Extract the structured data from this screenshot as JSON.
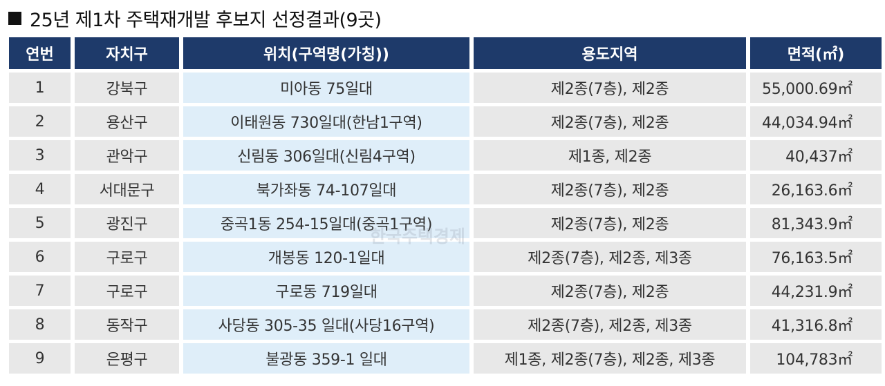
{
  "title": "25년 제1차 주택재개발 후보지 선정결과(9곳)",
  "watermark": "한국주택경제",
  "headers": {
    "no": "연번",
    "district": "자치구",
    "location": "위치(구역명(가칭))",
    "zoning": "용도지역",
    "area": "면적(㎡)"
  },
  "rows": [
    {
      "no": "1",
      "district": "강북구",
      "location": "미아동 75일대",
      "zoning": "제2종(7층), 제2종",
      "area": "55,000.69㎡"
    },
    {
      "no": "2",
      "district": "용산구",
      "location": "이태원동 730일대(한남1구역)",
      "zoning": "제2종(7층), 제2종",
      "area": "44,034.94㎡"
    },
    {
      "no": "3",
      "district": "관악구",
      "location": "신림동 306일대(신림4구역)",
      "zoning": "제1종, 제2종",
      "area": "40,437㎡"
    },
    {
      "no": "4",
      "district": "서대문구",
      "location": "북가좌동 74-107일대",
      "zoning": "제2종(7층), 제2종",
      "area": "26,163.6㎡"
    },
    {
      "no": "5",
      "district": "광진구",
      "location": "중곡1동 254-15일대(중곡1구역)",
      "zoning": "제2종(7층), 제2종",
      "area": "81,343.9㎡"
    },
    {
      "no": "6",
      "district": "구로구",
      "location": "개봉동 120-1일대",
      "zoning": "제2종(7층), 제2종, 제3종",
      "area": "76,163.5㎡"
    },
    {
      "no": "7",
      "district": "구로구",
      "location": "구로동 719일대",
      "zoning": "제2종(7층), 제2종",
      "area": "44,231.9㎡"
    },
    {
      "no": "8",
      "district": "동작구",
      "location": "사당동 305-35 일대(사당16구역)",
      "zoning": "제2종(7층), 제2종, 제3종",
      "area": "41,316.8㎡"
    },
    {
      "no": "9",
      "district": "은평구",
      "location": "불광동 359-1 일대",
      "zoning": "제1종, 제2종(7층), 제2종, 제3종",
      "area": "104,783㎡"
    }
  ]
}
